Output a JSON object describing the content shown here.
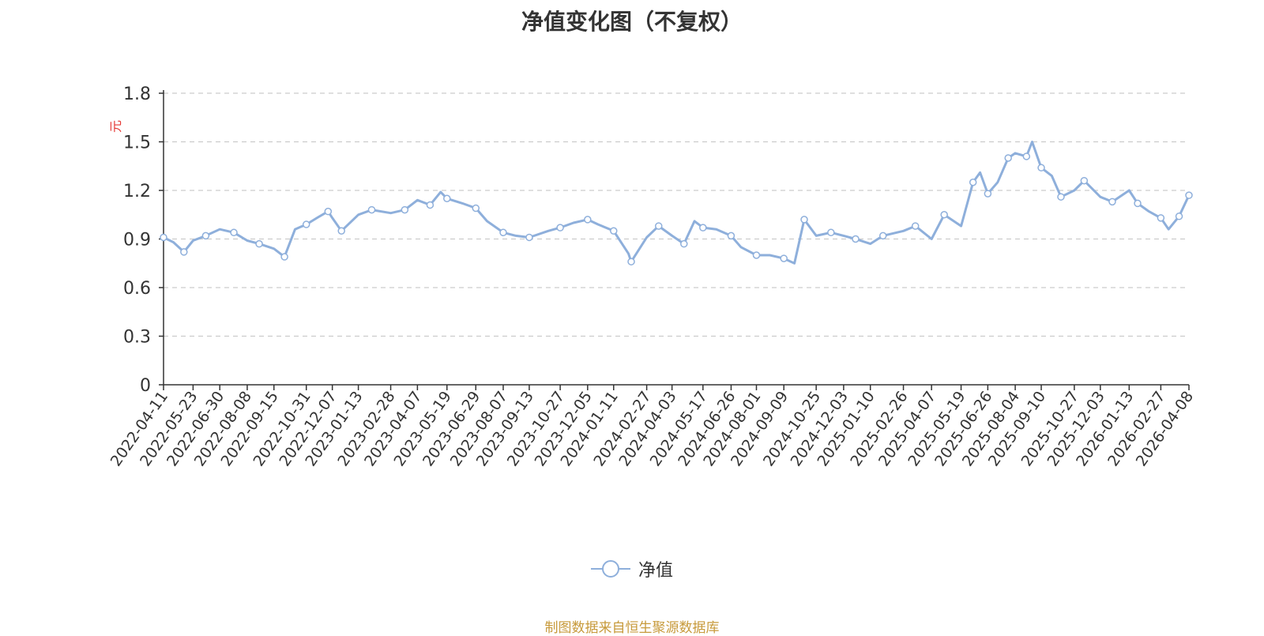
{
  "chart_data": {
    "type": "line",
    "title": "净值变化图（不复权）",
    "ylabel": "元",
    "ylim": [
      0,
      1.8
    ],
    "yticks": [
      0,
      0.3,
      0.6,
      0.9,
      1.2,
      1.5,
      1.8
    ],
    "grid": true,
    "legend_placement": "bottom-center",
    "colors": {
      "line": "#8eafdb",
      "axis": "#333333",
      "grid": "#cccccc",
      "ylabel": "#e53935",
      "source": "#c79a3b"
    },
    "x_ticks": [
      "2022-04-11",
      "2022-05-23",
      "2022-06-30",
      "2022-08-08",
      "2022-09-15",
      "2022-10-31",
      "2022-12-07",
      "2023-01-13",
      "2023-02-28",
      "2023-04-07",
      "2023-05-19",
      "2023-06-29",
      "2023-08-07",
      "2023-09-13",
      "2023-10-27",
      "2023-12-05",
      "2024-01-11",
      "2024-02-27",
      "2024-04-03",
      "2024-05-17",
      "2024-06-26",
      "2024-08-01",
      "2024-09-09",
      "2024-10-25",
      "2024-12-03",
      "2025-01-10",
      "2025-02-26",
      "2025-04-07",
      "2025-05-19",
      "2025-06-26",
      "2025-08-04",
      "2025-09-10",
      "2025-10-27",
      "2025-12-03",
      "2026-01-13",
      "2026-02-27",
      "2026-04-08"
    ],
    "series": [
      {
        "name": "净值",
        "x": [
          "2022-04-11",
          "2022-04-25",
          "2022-05-10",
          "2022-05-23",
          "2022-06-10",
          "2022-06-30",
          "2022-07-20",
          "2022-08-08",
          "2022-08-25",
          "2022-09-15",
          "2022-09-30",
          "2022-10-15",
          "2022-10-31",
          "2022-11-15",
          "2022-12-01",
          "2022-12-07",
          "2022-12-20",
          "2023-01-13",
          "2023-02-01",
          "2023-02-28",
          "2023-03-20",
          "2023-04-07",
          "2023-04-25",
          "2023-05-10",
          "2023-05-19",
          "2023-06-10",
          "2023-06-29",
          "2023-07-15",
          "2023-08-07",
          "2023-08-25",
          "2023-09-13",
          "2023-10-10",
          "2023-10-27",
          "2023-11-15",
          "2023-12-05",
          "2023-12-20",
          "2024-01-11",
          "2024-02-01",
          "2024-02-05",
          "2024-02-27",
          "2024-03-15",
          "2024-04-03",
          "2024-04-20",
          "2024-05-05",
          "2024-05-17",
          "2024-06-05",
          "2024-06-26",
          "2024-07-10",
          "2024-08-01",
          "2024-08-20",
          "2024-09-09",
          "2024-09-24",
          "2024-10-08",
          "2024-10-25",
          "2024-11-15",
          "2024-12-03",
          "2024-12-20",
          "2025-01-10",
          "2025-01-28",
          "2025-02-26",
          "2025-03-15",
          "2025-04-07",
          "2025-04-25",
          "2025-05-19",
          "2025-06-05",
          "2025-06-15",
          "2025-06-26",
          "2025-07-10",
          "2025-07-25",
          "2025-08-04",
          "2025-08-20",
          "2025-08-28",
          "2025-09-10",
          "2025-09-25",
          "2025-10-08",
          "2025-10-27",
          "2025-11-10",
          "2025-12-03",
          "2025-12-20",
          "2026-01-13",
          "2026-01-25",
          "2026-02-10",
          "2026-02-27",
          "2026-03-10",
          "2026-03-25",
          "2026-04-08"
        ],
        "values": [
          0.91,
          0.88,
          0.82,
          0.89,
          0.92,
          0.96,
          0.94,
          0.89,
          0.87,
          0.84,
          0.79,
          0.96,
          0.99,
          1.03,
          1.07,
          1.03,
          0.95,
          1.05,
          1.08,
          1.06,
          1.08,
          1.14,
          1.11,
          1.19,
          1.15,
          1.12,
          1.09,
          1.01,
          0.94,
          0.92,
          0.91,
          0.95,
          0.97,
          1.0,
          1.02,
          0.99,
          0.95,
          0.81,
          0.76,
          0.91,
          0.98,
          0.92,
          0.87,
          1.01,
          0.97,
          0.96,
          0.92,
          0.85,
          0.8,
          0.8,
          0.78,
          0.75,
          1.02,
          0.92,
          0.94,
          0.92,
          0.9,
          0.87,
          0.92,
          0.95,
          0.98,
          0.9,
          1.05,
          0.98,
          1.25,
          1.31,
          1.18,
          1.25,
          1.4,
          1.43,
          1.41,
          1.5,
          1.34,
          1.29,
          1.16,
          1.2,
          1.26,
          1.16,
          1.13,
          1.2,
          1.12,
          1.07,
          1.03,
          0.96,
          1.04,
          1.17
        ]
      }
    ]
  },
  "source_note": "制图数据来自恒生聚源数据库"
}
